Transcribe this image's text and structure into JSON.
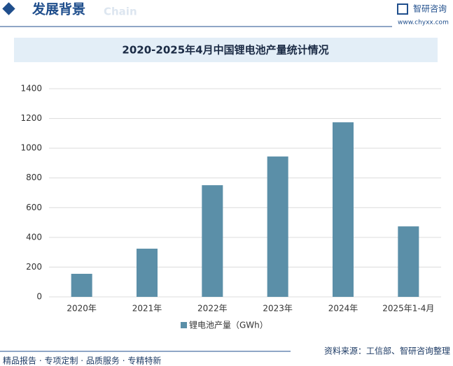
{
  "header": {
    "title": "发展背景",
    "subtitle": "Chain",
    "brand": "智研咨询",
    "url": "www.chyxx.com"
  },
  "footer": {
    "tagline": "精品报告 · 专项定制 · 品质服务 · 专精特新",
    "source": "资料来源：工信部、智研咨询整理"
  },
  "chart_data": {
    "type": "bar",
    "title": "2020-2025年4月中国锂电池产量统计情况",
    "categories": [
      "2020年",
      "2021年",
      "2022年",
      "2023年",
      "2024年",
      "2025年1-4月"
    ],
    "series": [
      {
        "name": "锂电池产量（GWh）",
        "color": "#5b8fa8",
        "values": [
          155,
          324,
          751,
          944,
          1174,
          474
        ]
      }
    ],
    "ylim": [
      0,
      1400
    ],
    "yticks": [
      0,
      200,
      400,
      600,
      800,
      1000,
      1200,
      1400
    ],
    "grid": true
  }
}
